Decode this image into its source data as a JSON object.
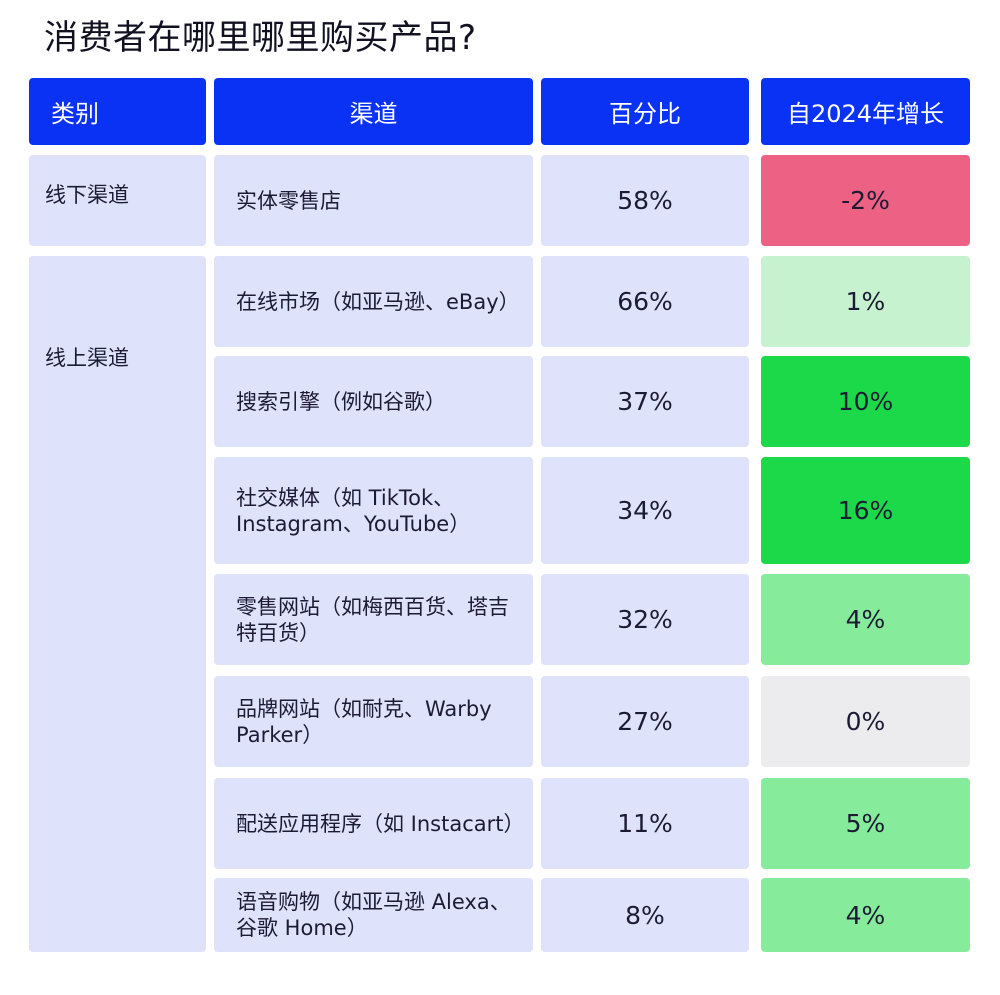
{
  "title": "消费者在哪里哪里购买产品?",
  "headers": {
    "category": "类别",
    "channel": "渠道",
    "percent": "百分比",
    "growth": "自2024年增长"
  },
  "categories": [
    {
      "label": "线下渠道"
    },
    {
      "label": "线上渠道"
    }
  ],
  "chart_data": {
    "type": "table",
    "columns": [
      "类别",
      "渠道",
      "百分比",
      "自2024年增长"
    ],
    "rows": [
      {
        "category": "线下渠道",
        "channel": "实体零售店",
        "percent": "58%",
        "growth": "-2%",
        "growth_color": "#ec6184"
      },
      {
        "category": "线上渠道",
        "channel": "在线市场（如亚马逊、eBay）",
        "percent": "66%",
        "growth": "1%",
        "growth_color": "#c6f2cf"
      },
      {
        "category": "线上渠道",
        "channel": "搜索引擎（例如谷歌）",
        "percent": "37%",
        "growth": "10%",
        "growth_color": "#1cd94a"
      },
      {
        "category": "线上渠道",
        "channel": "社交媒体（如 TikTok、Instagram、YouTube）",
        "percent": "34%",
        "growth": "16%",
        "growth_color": "#1cd94a"
      },
      {
        "category": "线上渠道",
        "channel": "零售网站（如梅西百货、塔吉特百货）",
        "percent": "32%",
        "growth": "4%",
        "growth_color": "#86eb9b"
      },
      {
        "category": "线上渠道",
        "channel": "品牌网站（如耐克、Warby Parker）",
        "percent": "27%",
        "growth": "0%",
        "growth_color": "#ececef"
      },
      {
        "category": "线上渠道",
        "channel": "配送应用程序（如 Instacart）",
        "percent": "11%",
        "growth": "5%",
        "growth_color": "#86eb9b"
      },
      {
        "category": "线上渠道",
        "channel": "语音购物（如亚马逊 Alexa、谷歌 Home）",
        "percent": "8%",
        "growth": "4%",
        "growth_color": "#86eb9b"
      }
    ]
  },
  "colors": {
    "header_bg": "#0a32f5",
    "header_text": "#ffffff",
    "cell_bg": "#dfe2fb"
  }
}
